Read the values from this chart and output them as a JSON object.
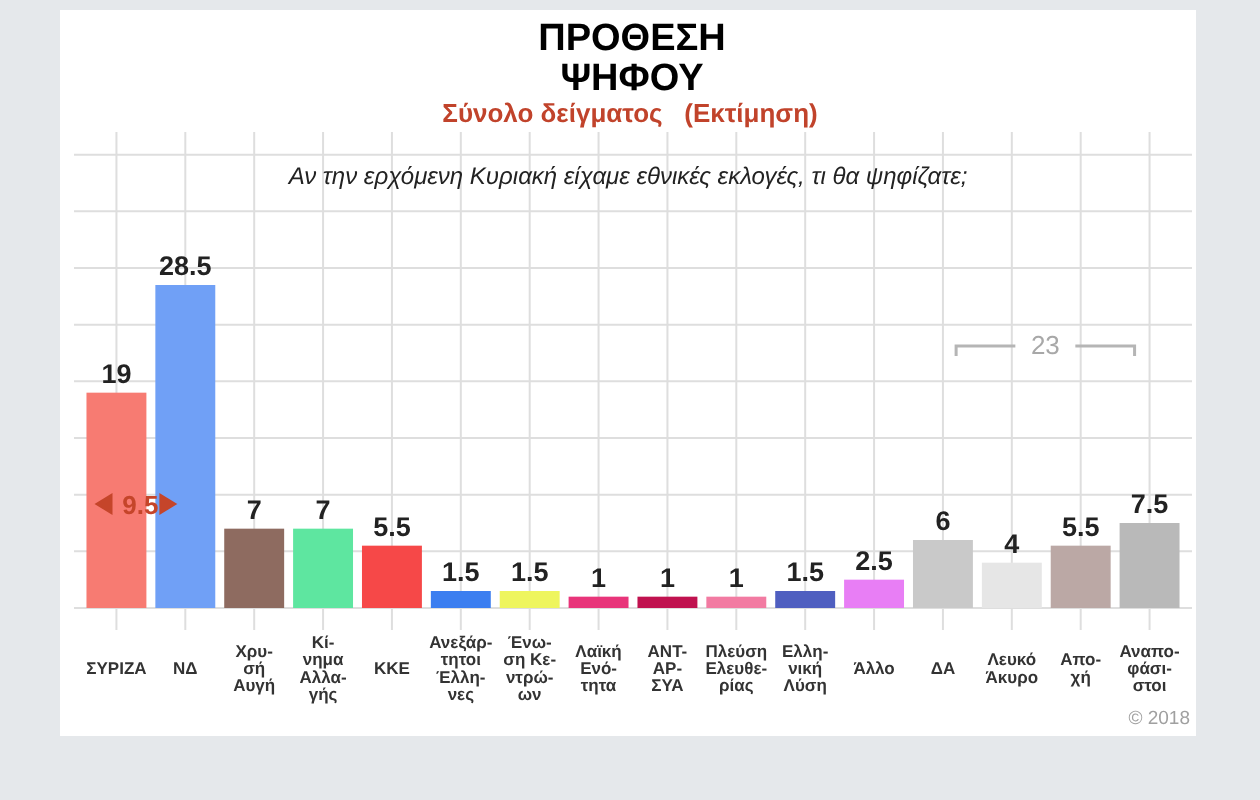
{
  "chart_data": {
    "type": "bar",
    "title": "ΠΡΟΘΕΣΗ ΨΗΦΟΥ",
    "subtitle": "Σύνολο δείγματος   (Εκτίμηση)",
    "annotations": [
      "Αν την ερχόμενη Κυριακή είχαμε εθνικές εκλογές, τι θα ψηφίζατε;",
      "9.5",
      "23",
      "© 2018"
    ],
    "categories": [
      "ΣΥΡΙΖΑ",
      "ΝΔ",
      "Χρυ-\nσή\nΑυγή",
      "Κί-\nνημα\nΑλλα-\nγής",
      "ΚΚΕ",
      "Ανεξάρ-\nτητοι\nΈλλη-\nνες",
      "Ένω-\nση Κε-\nντρώ-\nων",
      "Λαϊκή\nΕνό-\nτητα",
      "ΑΝΤ-\nΑΡ-\nΣΥΑ",
      "Πλεύση\nΕλευθε-\nρίας",
      "Ελλη-\nνική\nΛύση",
      "Άλλο",
      "ΔΑ",
      "Λευκό\nΆκυρο",
      "Απο-\nχή",
      "Αναπο-\nφάσι-\nστοι"
    ],
    "values": [
      19,
      28.5,
      7,
      7,
      5.5,
      1.5,
      1.5,
      1,
      1,
      1,
      1.5,
      2.5,
      6,
      4,
      5.5,
      7.5
    ],
    "colors": [
      "#f77b72",
      "#70a0f6",
      "#8e6b60",
      "#5ee6a0",
      "#f64848",
      "#3b7ef0",
      "#eef55e",
      "#e8357a",
      "#c0124f",
      "#f27ba2",
      "#4f5fc0",
      "#e87ef5",
      "#c9c9c9",
      "#e6e6e6",
      "#bba8a5",
      "#b9b9b9"
    ],
    "ylim": [
      0,
      42
    ],
    "yticks": [
      0,
      5,
      10,
      15,
      20,
      25,
      30,
      35,
      40
    ],
    "tick_labels": "x",
    "grid": true,
    "data_labels": true
  }
}
